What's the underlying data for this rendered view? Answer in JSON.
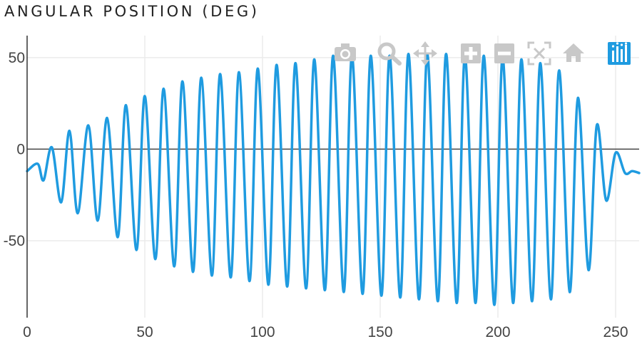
{
  "title": "ANGULAR POSITION (DEG)",
  "modebar": {
    "buttons": [
      {
        "name": "camera-icon",
        "active": false
      },
      {
        "name": "zoom-icon",
        "active": false
      },
      {
        "name": "pan-icon",
        "active": false
      },
      {
        "name": "zoom-in-icon",
        "active": false
      },
      {
        "name": "zoom-out-icon",
        "active": false
      },
      {
        "name": "autoscale-icon",
        "active": false
      },
      {
        "name": "home-icon",
        "active": false
      },
      {
        "name": "plotly-logo-icon",
        "active": true
      }
    ],
    "icon_color": "#c8c8c8",
    "active_color": "#1f9be0"
  },
  "chart_data": {
    "type": "line",
    "title": "ANGULAR POSITION (DEG)",
    "xlabel": "",
    "ylabel": "",
    "xlim": [
      0,
      260
    ],
    "ylim": [
      -92,
      62
    ],
    "xticks": [
      0,
      50,
      100,
      150,
      200,
      250
    ],
    "yticks": [
      -50,
      0,
      50
    ],
    "grid": true,
    "line_color": "#1f9be0",
    "zero_line": true,
    "series": [
      {
        "name": "",
        "x": [
          0,
          4.5,
          7,
          10.5,
          14.5,
          18,
          21.5,
          26,
          30,
          34,
          38.5,
          42,
          46.5,
          50,
          54.5,
          58,
          62.5,
          66,
          70.5,
          74,
          78.5,
          82,
          86.5,
          90,
          94.5,
          98,
          102.5,
          106,
          110.5,
          114,
          118.5,
          122,
          126.5,
          130,
          134.5,
          138,
          142.5,
          146,
          150.5,
          154,
          158.5,
          162,
          166.5,
          170,
          174.5,
          178,
          182.5,
          186,
          190.5,
          194,
          198.5,
          202,
          206.5,
          210,
          214.5,
          218,
          222.5,
          226,
          230.5,
          234,
          238.5,
          242,
          246,
          250,
          254,
          257,
          260
        ],
        "y": [
          -12,
          -8,
          -17,
          1,
          -29,
          10,
          -35,
          13,
          -39,
          17,
          -48,
          24,
          -55,
          29,
          -60,
          33,
          -64,
          37,
          -67,
          39,
          -69,
          41,
          -70,
          42,
          -72,
          44,
          -74,
          46,
          -75,
          47,
          -76,
          49,
          -77,
          51,
          -78,
          51,
          -79,
          51,
          -80,
          51,
          -81,
          52,
          -82,
          52,
          -83,
          52,
          -84,
          51,
          -84,
          51,
          -85,
          50,
          -84,
          49,
          -83,
          47,
          -82,
          43,
          -78,
          28,
          -66,
          13,
          -28,
          -2,
          -13,
          -12,
          -13
        ]
      }
    ]
  }
}
